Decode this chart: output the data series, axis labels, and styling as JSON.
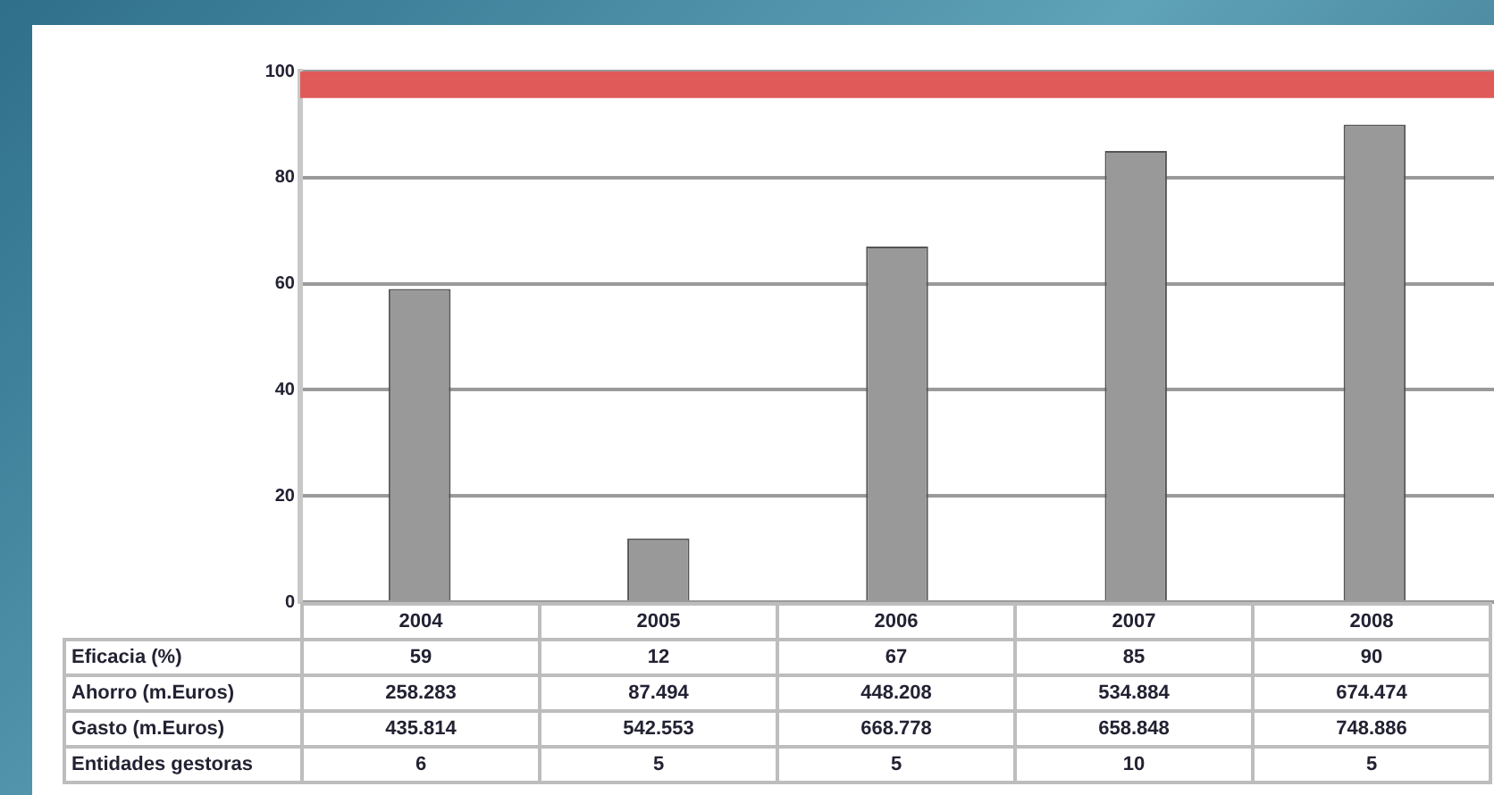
{
  "chart_data": {
    "type": "bar",
    "categories": [
      "2004",
      "2005",
      "2006",
      "2007",
      "2008"
    ],
    "series": [
      {
        "name": "Eficacia (%)",
        "color": "#999999",
        "values": [
          59,
          12,
          67,
          85,
          90
        ]
      }
    ],
    "ylim": [
      0,
      100
    ],
    "yticks": [
      0,
      20,
      40,
      60,
      80,
      100
    ],
    "grid": "y",
    "legend": false,
    "data_labels": true,
    "bands": [
      {
        "axis": "y",
        "from": 95,
        "to": 100,
        "color": "#e05a5a"
      }
    ],
    "annotations": [
      "Ahorro (m.Euros)",
      "258.283",
      "87.494",
      "448.208",
      "534.884",
      "674.474",
      "Gasto (m.Euros)",
      "435.814",
      "542.553",
      "668.778",
      "658.848",
      "748.886",
      "Entidades gestoras",
      "6",
      "5",
      "5",
      "10",
      "5"
    ]
  }
}
